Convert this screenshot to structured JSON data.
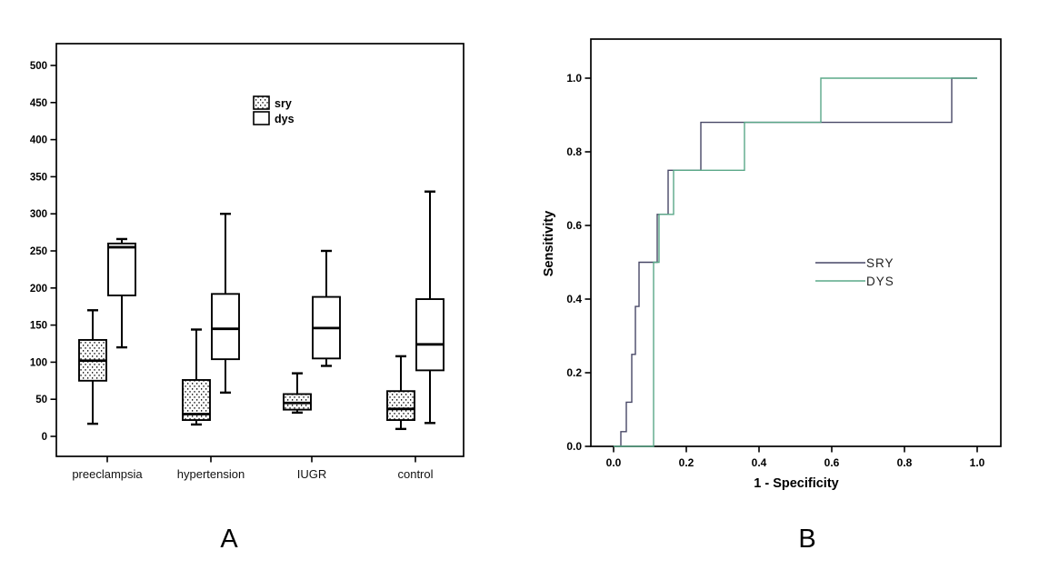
{
  "page": {
    "background": "#ffffff"
  },
  "captions": {
    "panel_a": "A",
    "panel_b": "B"
  },
  "colors": {
    "axis": "#000000",
    "box_outline": "#000000",
    "sry_line": "#474766",
    "dys_line": "#5aa888",
    "text": "#111111"
  },
  "chart_data": [
    {
      "id": "panel-a-boxplot",
      "type": "boxplot",
      "panel_label": "A",
      "categories": [
        "preeclampsia",
        "hypertension",
        "IUGR",
        "control"
      ],
      "yticks": [
        "0",
        "50",
        "100",
        "150",
        "200",
        "250",
        "300",
        "350",
        "400",
        "450",
        "500"
      ],
      "ylim": [
        0,
        500
      ],
      "legend": {
        "entries": [
          "sry",
          "dys"
        ],
        "position": "top-center"
      },
      "series": [
        {
          "name": "sry",
          "fill": "dotted",
          "boxes": [
            {
              "category": "preeclampsia",
              "min": 17,
              "q1": 75,
              "median": 102,
              "q3": 130,
              "max": 170
            },
            {
              "category": "hypertension",
              "min": 16,
              "q1": 22,
              "median": 30,
              "q3": 76,
              "max": 144
            },
            {
              "category": "IUGR",
              "min": 32,
              "q1": 36,
              "median": 45,
              "q3": 57,
              "max": 85
            },
            {
              "category": "control",
              "min": 10,
              "q1": 22,
              "median": 37,
              "q3": 61,
              "max": 108
            }
          ]
        },
        {
          "name": "dys",
          "fill": "open",
          "boxes": [
            {
              "category": "preeclampsia",
              "min": 120,
              "q1": 190,
              "median": 255,
              "q3": 260,
              "max": 266
            },
            {
              "category": "hypertension",
              "min": 59,
              "q1": 104,
              "median": 145,
              "q3": 192,
              "max": 300
            },
            {
              "category": "IUGR",
              "min": 95,
              "q1": 105,
              "median": 146,
              "q3": 188,
              "max": 250
            },
            {
              "category": "control",
              "min": 18,
              "q1": 89,
              "median": 124,
              "q3": 185,
              "max": 330
            }
          ]
        }
      ]
    },
    {
      "id": "panel-b-roc",
      "type": "line",
      "panel_label": "B",
      "xlabel": "1 - Specificity",
      "ylabel": "Sensitivity",
      "xticks": [
        "0.0",
        "0.2",
        "0.4",
        "0.6",
        "0.8",
        "1.0"
      ],
      "yticks": [
        "0.0",
        "0.2",
        "0.4",
        "0.6",
        "0.8",
        "1.0"
      ],
      "xlim": [
        0,
        1
      ],
      "ylim": [
        0,
        1
      ],
      "legend": {
        "entries": [
          "SRY",
          "DYS"
        ],
        "position": "center-right"
      },
      "series": [
        {
          "name": "SRY",
          "color_key": "sry_line",
          "points": [
            [
              0.02,
              0.0
            ],
            [
              0.02,
              0.04
            ],
            [
              0.035,
              0.04
            ],
            [
              0.035,
              0.12
            ],
            [
              0.05,
              0.12
            ],
            [
              0.05,
              0.25
            ],
            [
              0.06,
              0.25
            ],
            [
              0.06,
              0.38
            ],
            [
              0.07,
              0.38
            ],
            [
              0.07,
              0.5
            ],
            [
              0.12,
              0.5
            ],
            [
              0.12,
              0.63
            ],
            [
              0.15,
              0.63
            ],
            [
              0.15,
              0.75
            ],
            [
              0.24,
              0.75
            ],
            [
              0.24,
              0.88
            ],
            [
              0.93,
              0.88
            ],
            [
              0.93,
              1.0
            ],
            [
              1.0,
              1.0
            ]
          ]
        },
        {
          "name": "DYS",
          "color_key": "dys_line",
          "points": [
            [
              0.0,
              0.0
            ],
            [
              0.11,
              0.0
            ],
            [
              0.11,
              0.5
            ],
            [
              0.125,
              0.5
            ],
            [
              0.125,
              0.63
            ],
            [
              0.165,
              0.63
            ],
            [
              0.165,
              0.75
            ],
            [
              0.36,
              0.75
            ],
            [
              0.36,
              0.88
            ],
            [
              0.57,
              0.88
            ],
            [
              0.57,
              1.0
            ],
            [
              1.0,
              1.0
            ]
          ]
        }
      ]
    }
  ]
}
